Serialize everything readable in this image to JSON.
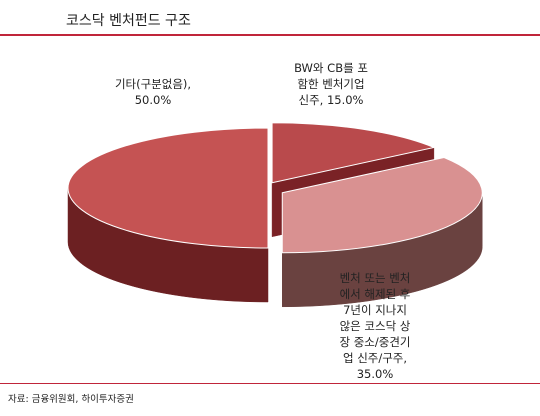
{
  "title": "코스닥 벤처펀드 구조",
  "source": "자료: 금융위원회, 하이투자증권",
  "chart_data": {
    "type": "pie",
    "title": "코스닥 벤처펀드 구조",
    "three_d": true,
    "exploded": true,
    "slices": [
      {
        "label_lines": [
          "BW와 CB를 포",
          "함한 벤처기업",
          "신주, 15.0%"
        ],
        "category": "BW와 CB를 포함한 벤처기업 신주",
        "value": 15.0,
        "color": "#b94a4c",
        "side_color": "#7a2226"
      },
      {
        "label_lines": [
          "벤처 또는 벤처",
          "에서 해제된 후",
          "7년이 지나지",
          "않은 코스닥 상",
          "장 중소/중견기",
          "업 신주/구주,",
          "35.0%"
        ],
        "category": "벤처 또는 벤처에서 해제된 후 7년이 지나지 않은 코스닥 상장 중소/중견기업 신주/구주",
        "value": 35.0,
        "color": "#d99191",
        "side_color": "#6a4240"
      },
      {
        "label_lines": [
          "기타(구분없음),",
          "50.0%"
        ],
        "category": "기타(구분없음)",
        "value": 50.0,
        "color": "#c55353",
        "side_color": "#6c2022"
      }
    ]
  }
}
